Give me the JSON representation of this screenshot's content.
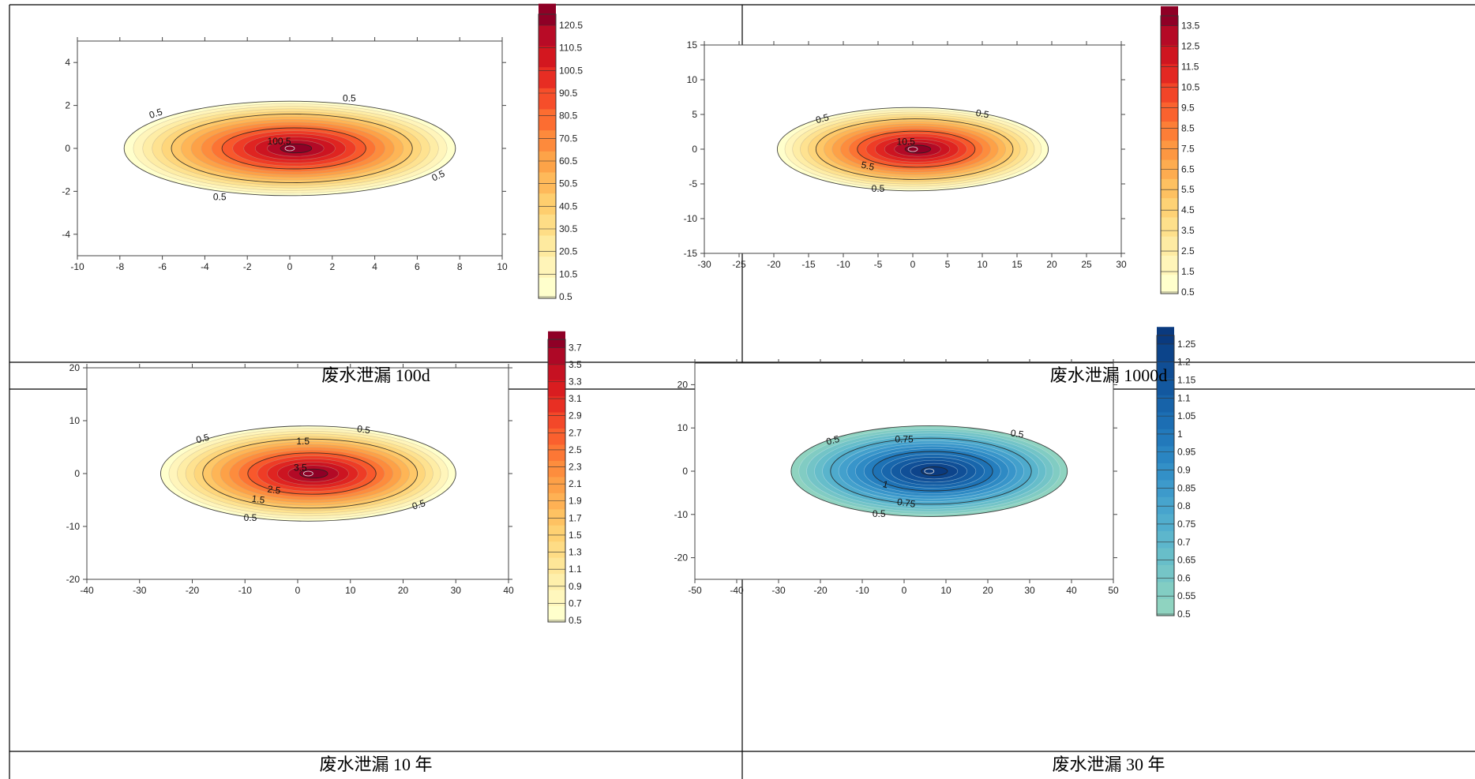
{
  "chart_data": [
    {
      "type": "contour",
      "caption": "废水泄漏 100d",
      "xlim": [
        -10,
        10
      ],
      "ylim": [
        -5,
        5
      ],
      "x_ticks": [
        -10,
        -8,
        -6,
        -4,
        -2,
        0,
        2,
        4,
        6,
        8,
        10
      ],
      "y_ticks": [
        -4,
        -2,
        0,
        2,
        4
      ],
      "plume": {
        "center": [
          0,
          0
        ],
        "semi_axis_x": 7.8,
        "semi_axis_y": 2.2
      },
      "colormap": "red",
      "colorbar_labels": [
        "0.5",
        "10.5",
        "20.5",
        "30.5",
        "40.5",
        "50.5",
        "60.5",
        "70.5",
        "80.5",
        "90.5",
        "100.5",
        "110.5",
        "120.5"
      ],
      "contour_labels": [
        {
          "text": "0.5",
          "x": -6.3,
          "y": 1.6,
          "rot": -18
        },
        {
          "text": "0.5",
          "x": 2.8,
          "y": 2.3,
          "rot": 0
        },
        {
          "text": "0.5",
          "x": 7.0,
          "y": -1.3,
          "rot": -25
        },
        {
          "text": "0.5",
          "x": -3.3,
          "y": -2.3,
          "rot": 0
        },
        {
          "text": "100.5",
          "x": -0.5,
          "y": 0.3,
          "rot": 0
        }
      ]
    },
    {
      "type": "contour",
      "caption": "废水泄漏 1000d",
      "xlim": [
        -30,
        30
      ],
      "ylim": [
        -15,
        15
      ],
      "x_ticks": [
        -30,
        -25,
        -20,
        -15,
        -10,
        -5,
        0,
        5,
        10,
        15,
        20,
        25,
        30
      ],
      "y_ticks": [
        -15,
        -10,
        -5,
        0,
        5,
        10,
        15
      ],
      "plume": {
        "center": [
          0,
          0
        ],
        "semi_axis_x": 19.5,
        "semi_axis_y": 6
      },
      "colormap": "red",
      "colorbar_labels": [
        "0.5",
        "1.5",
        "2.5",
        "3.5",
        "4.5",
        "5.5",
        "6.5",
        "7.5",
        "8.5",
        "9.5",
        "10.5",
        "11.5",
        "12.5",
        "13.5"
      ],
      "contour_labels": [
        {
          "text": "0.5",
          "x": -13,
          "y": 4.3,
          "rot": -15
        },
        {
          "text": "0.5",
          "x": 10,
          "y": 5,
          "rot": 10
        },
        {
          "text": "0.5",
          "x": -5,
          "y": -5.8,
          "rot": 0
        },
        {
          "text": "10.5",
          "x": -1,
          "y": 1,
          "rot": 0
        },
        {
          "text": "5.5",
          "x": -6.5,
          "y": -2.5,
          "rot": 12
        }
      ]
    },
    {
      "type": "contour",
      "caption": "废水泄漏 10 年",
      "xlim": [
        -40,
        40
      ],
      "ylim": [
        -20,
        20
      ],
      "x_ticks": [
        -40,
        -30,
        -20,
        -10,
        0,
        10,
        20,
        30,
        40
      ],
      "y_ticks": [
        -20,
        -10,
        0,
        10,
        20
      ],
      "plume": {
        "center": [
          2,
          0
        ],
        "semi_axis_x": 28,
        "semi_axis_y": 9
      },
      "colormap": "red",
      "colorbar_labels": [
        "0.5",
        "0.7",
        "0.9",
        "1.1",
        "1.3",
        "1.5",
        "1.7",
        "1.9",
        "2.1",
        "2.3",
        "2.5",
        "2.7",
        "2.9",
        "3.1",
        "3.3",
        "3.5",
        "3.7"
      ],
      "contour_labels": [
        {
          "text": "0.5",
          "x": -18,
          "y": 6.5,
          "rot": -15
        },
        {
          "text": "0.5",
          "x": 12.5,
          "y": 8.2,
          "rot": 8
        },
        {
          "text": "1.5",
          "x": 1,
          "y": 6,
          "rot": 0
        },
        {
          "text": "0.5",
          "x": -9,
          "y": -8.5,
          "rot": 0
        },
        {
          "text": "0.5",
          "x": 23,
          "y": -6,
          "rot": -18
        },
        {
          "text": "1.5",
          "x": -7.5,
          "y": -5,
          "rot": 8
        },
        {
          "text": "2.5",
          "x": -4.5,
          "y": -3.2,
          "rot": 8
        },
        {
          "text": "3.5",
          "x": 0.5,
          "y": 1,
          "rot": 0
        }
      ]
    },
    {
      "type": "contour",
      "caption": "废水泄漏 30 年",
      "xlim": [
        -50,
        50
      ],
      "ylim": [
        -25,
        25
      ],
      "x_ticks": [
        -50,
        -40,
        -30,
        -20,
        -10,
        0,
        10,
        20,
        30,
        40,
        50
      ],
      "y_ticks": [
        -20,
        -10,
        0,
        10,
        20
      ],
      "plume": {
        "center": [
          6,
          0
        ],
        "semi_axis_x": 33,
        "semi_axis_y": 10.5
      },
      "colormap": "blue",
      "colorbar_labels": [
        "0.5",
        "0.55",
        "0.6",
        "0.65",
        "0.7",
        "0.75",
        "0.8",
        "0.85",
        "0.9",
        "0.95",
        "1",
        "1.05",
        "1.1",
        "1.15",
        "1.2",
        "1.25"
      ],
      "contour_labels": [
        {
          "text": "0.5",
          "x": -17,
          "y": 7,
          "rot": -15
        },
        {
          "text": "0.5",
          "x": 27,
          "y": 8.5,
          "rot": 8
        },
        {
          "text": "0.75",
          "x": 0,
          "y": 7.2,
          "rot": 0
        },
        {
          "text": "0.75",
          "x": 0.5,
          "y": -7.5,
          "rot": 8
        },
        {
          "text": "0.5",
          "x": -6,
          "y": -10,
          "rot": 0
        },
        {
          "text": "1",
          "x": -4.5,
          "y": -3.2,
          "rot": 15
        }
      ]
    }
  ]
}
